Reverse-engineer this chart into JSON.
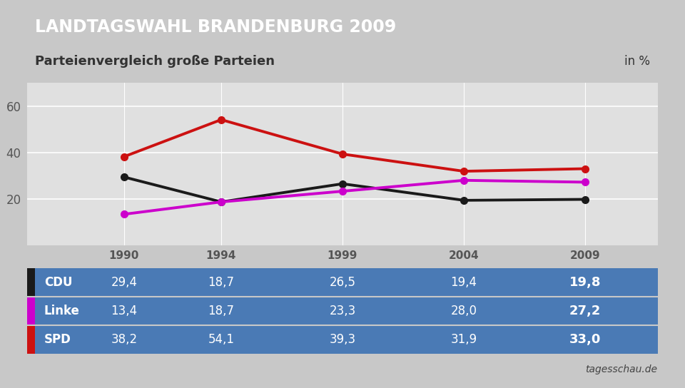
{
  "title": "LANDTAGSWAHL BRANDENBURG 2009",
  "subtitle": "Parteienvergleich große Parteien",
  "subtitle_right": "in %",
  "source": "tagesschau.de",
  "years": [
    1990,
    1994,
    1999,
    2004,
    2009
  ],
  "series": [
    {
      "name": "CDU",
      "color": "#1a1a1a",
      "values": [
        29.4,
        18.7,
        26.5,
        19.4,
        19.8
      ]
    },
    {
      "name": "Linke",
      "color": "#cc00cc",
      "values": [
        13.4,
        18.7,
        23.3,
        28.0,
        27.2
      ]
    },
    {
      "name": "SPD",
      "color": "#cc1111",
      "values": [
        38.2,
        54.1,
        39.3,
        31.9,
        33.0
      ]
    }
  ],
  "ylim": [
    0,
    70
  ],
  "yticks": [
    20,
    40,
    60
  ],
  "title_bg_color": "#1e3f7a",
  "title_text_color": "#ffffff",
  "subtitle_bg_color": "#f2f2f2",
  "subtitle_text_color": "#333333",
  "table_bg_color": "#4a7ab5",
  "table_text_color": "#ffffff",
  "header_text_color": "#555555",
  "bg_color": "#c8c8c8",
  "plot_bg_color": "#e0e0e0",
  "grid_color": "#ffffff",
  "plot_xlim": [
    1986,
    2012
  ],
  "source_color": "#444444"
}
